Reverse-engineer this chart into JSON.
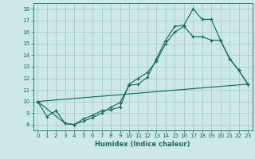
{
  "xlabel": "Humidex (Indice chaleur)",
  "bg_color": "#cce8e8",
  "grid_color": "#aacccc",
  "line_color": "#1a6b5a",
  "xlim": [
    -0.5,
    23.5
  ],
  "ylim": [
    7.5,
    18.5
  ],
  "xticks": [
    0,
    1,
    2,
    3,
    4,
    5,
    6,
    7,
    8,
    9,
    10,
    11,
    12,
    13,
    14,
    15,
    16,
    17,
    18,
    19,
    20,
    21,
    22,
    23
  ],
  "yticks": [
    8,
    9,
    10,
    11,
    12,
    13,
    14,
    15,
    16,
    17,
    18
  ],
  "series1_x": [
    0,
    1,
    2,
    3,
    4,
    5,
    6,
    7,
    8,
    9,
    10,
    11,
    12,
    13,
    14,
    15,
    16,
    17,
    18,
    19,
    20,
    21,
    22,
    23
  ],
  "series1_y": [
    10.0,
    8.7,
    9.2,
    8.1,
    8.0,
    8.3,
    8.6,
    9.0,
    9.5,
    9.9,
    11.4,
    11.5,
    12.1,
    13.7,
    15.3,
    16.5,
    16.6,
    18.0,
    17.1,
    17.1,
    15.3,
    13.7,
    12.7,
    11.5
  ],
  "series2_x": [
    0,
    3,
    4,
    5,
    6,
    7,
    8,
    9,
    10,
    11,
    12,
    13,
    14,
    15,
    16,
    17,
    18,
    19,
    20,
    21,
    22,
    23
  ],
  "series2_y": [
    10.0,
    8.1,
    8.0,
    8.5,
    8.8,
    9.2,
    9.3,
    9.5,
    11.5,
    12.0,
    12.5,
    13.5,
    15.0,
    16.0,
    16.5,
    15.6,
    15.6,
    15.3,
    15.3,
    13.7,
    12.7,
    11.5
  ],
  "series3_x": [
    0,
    23
  ],
  "series3_y": [
    10.0,
    11.5
  ]
}
